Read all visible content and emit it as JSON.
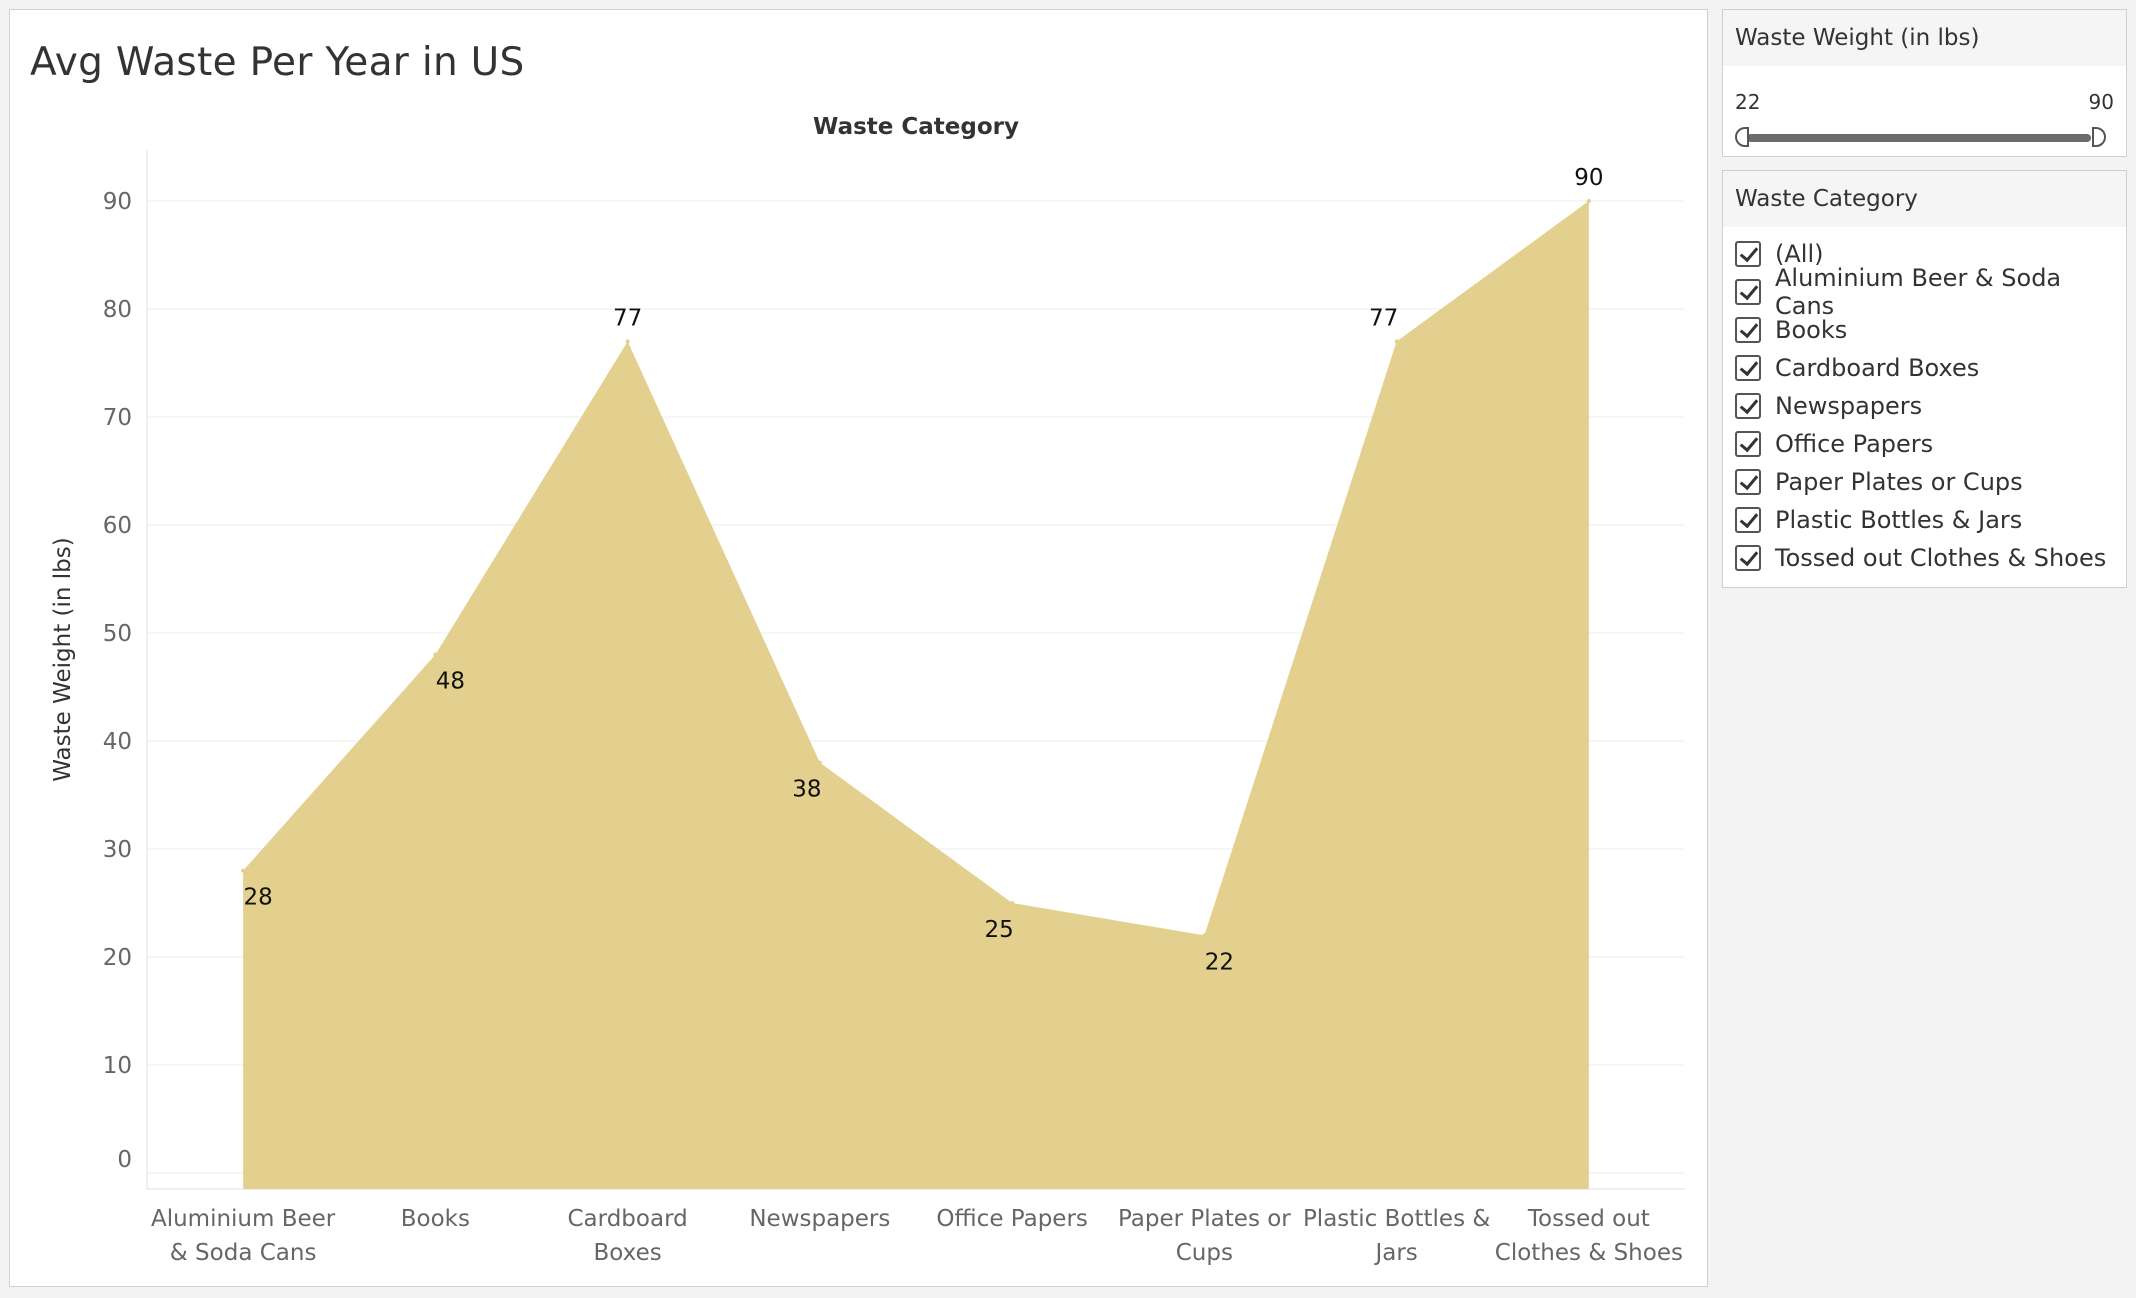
{
  "page": {
    "title": "Avg Waste Per Year in US"
  },
  "colors": {
    "area_fill": "#e3d08f",
    "gridline": "#ececec",
    "axis_text": "#666666",
    "label_text": "#111111"
  },
  "chart_data": {
    "type": "area",
    "title": "Avg Waste Per Year in US",
    "column_header": "Waste Category",
    "xlabel": "",
    "ylabel": "Waste Weight (in lbs)",
    "categories": [
      [
        "Aluminium Beer",
        "& Soda Cans"
      ],
      [
        "Books"
      ],
      [
        "Cardboard",
        "Boxes"
      ],
      [
        "Newspapers"
      ],
      [
        "Office Papers"
      ],
      [
        "Paper Plates or",
        "Cups"
      ],
      [
        "Plastic Bottles &",
        "Jars"
      ],
      [
        "Tossed out",
        "Clothes & Shoes"
      ]
    ],
    "values": [
      28,
      48,
      77,
      38,
      25,
      22,
      77,
      90
    ],
    "data_labels": [
      "28",
      "48",
      "77",
      "38",
      "25",
      "22",
      "77",
      "90"
    ],
    "ylim": [
      0,
      90
    ],
    "yticks": [
      0,
      10,
      20,
      30,
      40,
      50,
      60,
      70,
      80,
      90
    ],
    "grid": true,
    "legend": "none"
  },
  "slider": {
    "title": "Waste Weight (in lbs)",
    "min_label": "22",
    "max_label": "90",
    "min": 22,
    "max": 90
  },
  "filter": {
    "title": "Waste Category",
    "items": [
      {
        "label": "(All)",
        "checked": true
      },
      {
        "label": "Aluminium Beer & Soda Cans",
        "checked": true
      },
      {
        "label": "Books",
        "checked": true
      },
      {
        "label": "Cardboard Boxes",
        "checked": true
      },
      {
        "label": "Newspapers",
        "checked": true
      },
      {
        "label": "Office Papers",
        "checked": true
      },
      {
        "label": "Paper Plates or Cups",
        "checked": true
      },
      {
        "label": "Plastic Bottles & Jars",
        "checked": true
      },
      {
        "label": "Tossed out Clothes & Shoes",
        "checked": true
      }
    ]
  }
}
